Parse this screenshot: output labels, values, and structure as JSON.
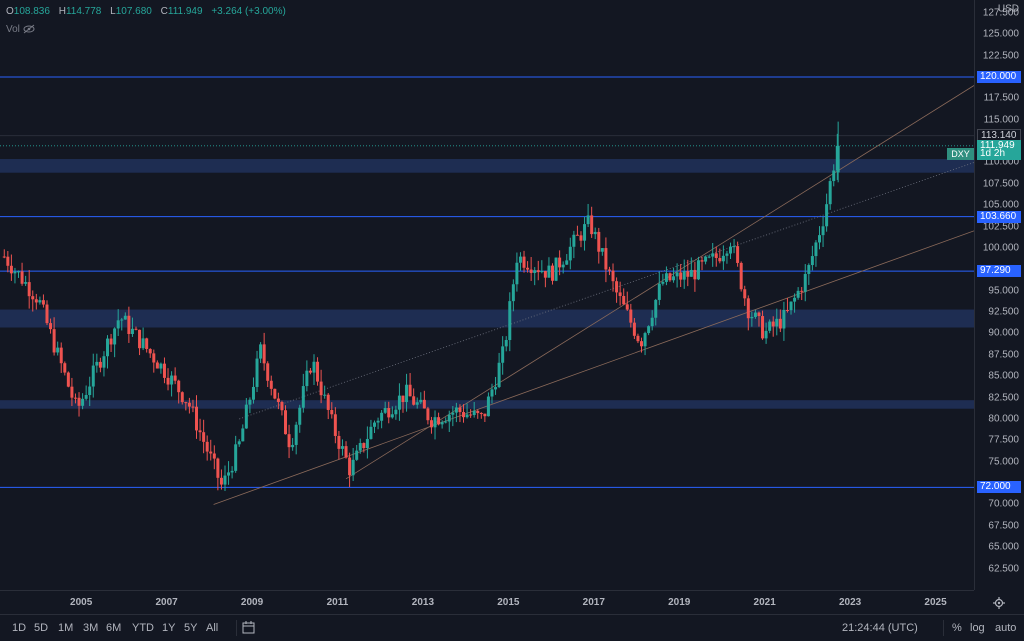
{
  "header": {
    "open_label": "O",
    "open": "108.836",
    "high_label": "H",
    "high": "114.778",
    "low_label": "L",
    "low": "107.680",
    "close_label": "C",
    "close": "111.949",
    "change": "+3.264 (+3.00%)",
    "vol_label": "Vol",
    "vol_icon": "eye-slash-icon"
  },
  "symbol": "DXY",
  "currency": "USD",
  "price_axis": {
    "min": 60,
    "max": 129.0,
    "ticks": [
      "127.500",
      "125.000",
      "122.500",
      "117.500",
      "115.000",
      "110.000",
      "107.500",
      "105.000",
      "102.500",
      "100.000",
      "95.000",
      "92.500",
      "90.000",
      "87.500",
      "85.000",
      "82.500",
      "80.000",
      "77.500",
      "75.000",
      "70.000",
      "67.500",
      "65.000",
      "62.500"
    ]
  },
  "badges": [
    {
      "label": "120.000",
      "price": 120.0,
      "color": "#2962ff"
    },
    {
      "label": "113.140",
      "price": 113.14,
      "color": "#131722"
    },
    {
      "label": "111.949",
      "price": 111.949,
      "color": "#26a69a"
    },
    {
      "label": "1d 2h",
      "price": 111.0,
      "color": "#26a69a"
    },
    {
      "label": "103.660",
      "price": 103.66,
      "color": "#2962ff"
    },
    {
      "label": "97.290",
      "price": 97.29,
      "color": "#2962ff"
    },
    {
      "label": "72.000",
      "price": 72.0,
      "color": "#2962ff"
    }
  ],
  "time_axis": {
    "years": [
      "2005",
      "2007",
      "2009",
      "2011",
      "2013",
      "2015",
      "2017",
      "2019",
      "2021",
      "2023",
      "2025"
    ],
    "start_year": 2003.1,
    "end_year": 2025.9
  },
  "chart_data": {
    "type": "candlestick",
    "horizontal_levels": [
      120.0,
      103.66,
      97.29,
      72.0,
      113.14
    ],
    "zones": [
      [
        108.8,
        110.4
      ],
      [
        90.7,
        92.8
      ],
      [
        81.2,
        82.2
      ]
    ],
    "series": [
      {
        "name": "DXY",
        "x": [
          "2003.2",
          "2004.0",
          "2004.9",
          "2005.9",
          "2006.9",
          "2007.5",
          "2008.3",
          "2008.7",
          "2009.2",
          "2009.9",
          "2010.4",
          "2010.9",
          "2011.3",
          "2011.9",
          "2012.6",
          "2013.2",
          "2013.8",
          "2014.4",
          "2014.9",
          "2015.2",
          "2016.0",
          "2016.9",
          "2017.5",
          "2018.1",
          "2018.6",
          "2019.3",
          "2019.9",
          "2020.2",
          "2020.6",
          "2021.0",
          "2021.5",
          "2022.0",
          "2022.4",
          "2022.7"
        ],
        "values": [
          99,
          94,
          81,
          92,
          86,
          82,
          72,
          77,
          88,
          77,
          87,
          79,
          74,
          80,
          83,
          80,
          81,
          80,
          88,
          99,
          97,
          103,
          95,
          89,
          96,
          97,
          99,
          101,
          93,
          90,
          92,
          97,
          104,
          112
        ]
      }
    ],
    "trend_channels": [
      {
        "from": [
          2008.1,
          70
        ],
        "to": [
          2025.9,
          102
        ]
      },
      {
        "from": [
          2008.7,
          80
        ],
        "to": [
          2025.9,
          110
        ]
      },
      {
        "from": [
          2011.2,
          73
        ],
        "to": [
          2025.9,
          119
        ]
      }
    ]
  },
  "time_readout": "21:24:44 (UTC)",
  "toolbar": {
    "ranges": [
      "1D",
      "5D",
      "1M",
      "3M",
      "6M",
      "YTD",
      "1Y",
      "5Y",
      "All"
    ],
    "calendar_icon": "calendar-icon",
    "percent_label": "%",
    "log_label": "log",
    "auto_label": "auto",
    "settings_icon": "gear-icon"
  }
}
